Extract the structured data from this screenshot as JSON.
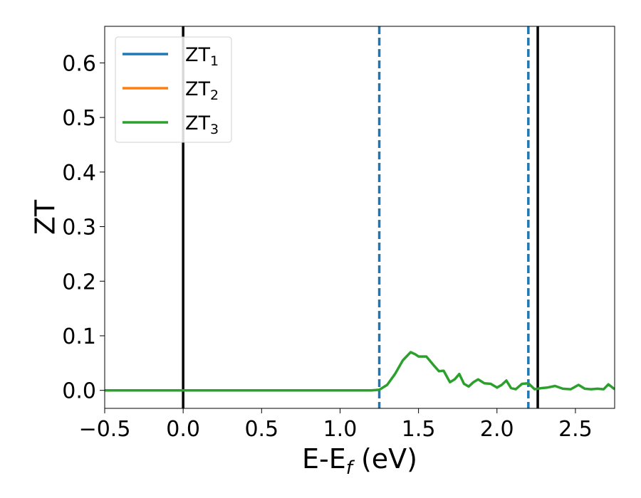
{
  "chart_data": {
    "type": "line",
    "xlabel": "E-E",
    "xlabel_sub": "f",
    "xlabel_unit": " (eV)",
    "ylabel": "ZT",
    "xlim": [
      -0.5,
      2.75
    ],
    "ylim": [
      -0.033,
      0.667
    ],
    "xticks": [
      -0.5,
      0.0,
      0.5,
      1.0,
      1.5,
      2.0,
      2.5
    ],
    "xtick_labels": [
      "−0.5",
      "0.0",
      "0.5",
      "1.0",
      "1.5",
      "2.0",
      "2.5"
    ],
    "yticks": [
      0.0,
      0.1,
      0.2,
      0.3,
      0.4,
      0.5,
      0.6
    ],
    "ytick_labels": [
      "0.0",
      "0.1",
      "0.2",
      "0.3",
      "0.4",
      "0.5",
      "0.6"
    ],
    "grid": false,
    "legend_position": "upper-left",
    "series": [
      {
        "name": "ZT",
        "name_sub": "1",
        "color": "#1f77b4",
        "x": [],
        "y": []
      },
      {
        "name": "ZT",
        "name_sub": "2",
        "color": "#ff7f0e",
        "x": [],
        "y": []
      },
      {
        "name": "ZT",
        "name_sub": "3",
        "color": "#2ca02c",
        "x": [
          -0.5,
          0.0,
          0.5,
          1.0,
          1.2,
          1.25,
          1.3,
          1.35,
          1.4,
          1.45,
          1.48,
          1.5,
          1.55,
          1.6,
          1.63,
          1.66,
          1.7,
          1.73,
          1.76,
          1.79,
          1.82,
          1.85,
          1.88,
          1.92,
          1.96,
          2.0,
          2.03,
          2.06,
          2.09,
          2.12,
          2.16,
          2.2,
          2.24,
          2.28,
          2.32,
          2.37,
          2.42,
          2.47,
          2.52,
          2.56,
          2.6,
          2.64,
          2.68,
          2.71,
          2.75
        ],
        "y": [
          0.0,
          0.0,
          0.0,
          0.0,
          0.0,
          0.001,
          0.01,
          0.03,
          0.055,
          0.07,
          0.066,
          0.062,
          0.062,
          0.045,
          0.035,
          0.036,
          0.015,
          0.02,
          0.03,
          0.012,
          0.007,
          0.015,
          0.02,
          0.013,
          0.012,
          0.005,
          0.01,
          0.018,
          0.004,
          0.002,
          0.012,
          0.013,
          0.002,
          0.004,
          0.005,
          0.008,
          0.003,
          0.002,
          0.01,
          0.003,
          0.002,
          0.003,
          0.002,
          0.011,
          0.002
        ]
      }
    ],
    "vlines": [
      {
        "x": 0.0,
        "color": "#000000",
        "style": "solid"
      },
      {
        "x": 1.25,
        "color": "#1f77b4",
        "style": "dashed"
      },
      {
        "x": 2.2,
        "color": "#1f77b4",
        "style": "dashed"
      },
      {
        "x": 2.26,
        "color": "#000000",
        "style": "solid"
      }
    ]
  }
}
